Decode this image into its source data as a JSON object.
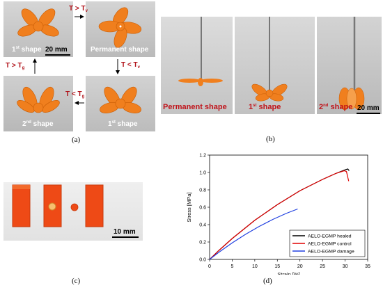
{
  "panel_a": {
    "label": "(a)",
    "captions": {
      "top_left_base": "1",
      "top_left_sup": "st",
      "top_left_rest": " shape",
      "top_right": "Permanent shape",
      "bottom_left_base": "2",
      "bottom_left_sup": "nd",
      "bottom_left_rest": " shape",
      "bottom_right_base": "1",
      "bottom_right_sup": "st",
      "bottom_right_rest": " shape"
    },
    "scale": "20 mm",
    "conditions": {
      "right": {
        "base": "T > T",
        "sub": "v"
      },
      "down": {
        "base": "T < T",
        "sub": "v"
      },
      "left": {
        "base": "T < T",
        "sub": "g"
      },
      "up": {
        "base": "T > T",
        "sub": "g"
      }
    }
  },
  "panel_b": {
    "label": "(b)",
    "captions": {
      "left": "Permanent shape",
      "middle_base": "1",
      "middle_sup": "st",
      "middle_rest": " shape",
      "right_base": "2",
      "right_sup": "nd",
      "right_rest": " shape"
    },
    "scale": "20 mm"
  },
  "panel_c": {
    "label": "(c)",
    "scale": "10 mm"
  },
  "panel_d": {
    "label": "(d)"
  },
  "colors": {
    "photo_gray": "#c9c9c9",
    "orange": "#f07f1e",
    "red_text": "#c0141b",
    "healed": "#000000",
    "control": "#e00000",
    "damage": "#1f3fe0"
  },
  "chart_data": {
    "type": "line",
    "xlabel": "Strain [%]",
    "ylabel": "Stress [MPa]",
    "xlim": [
      0,
      35
    ],
    "ylim": [
      0,
      1.2
    ],
    "xticks": [
      "0",
      "5",
      "10",
      "15",
      "20",
      "25",
      "30",
      "35"
    ],
    "yticks": [
      "0.0",
      "0.2",
      "0.4",
      "0.6",
      "0.8",
      "1.0",
      "1.2"
    ],
    "legend_position": "bottom-right",
    "series": [
      {
        "name": "AELO-EGMP healed",
        "color": "#000000",
        "x": [
          0,
          2,
          5,
          10,
          15,
          20,
          25,
          28,
          30,
          30.6,
          30.9
        ],
        "y": [
          0,
          0.1,
          0.24,
          0.45,
          0.63,
          0.79,
          0.92,
          0.99,
          1.03,
          1.04,
          1.02
        ]
      },
      {
        "name": "AELO-EGMP control",
        "color": "#e00000",
        "x": [
          0,
          2,
          5,
          10,
          15,
          20,
          25,
          28,
          29.8,
          30.3,
          30.8
        ],
        "y": [
          0,
          0.1,
          0.24,
          0.45,
          0.63,
          0.79,
          0.92,
          0.99,
          1.02,
          1.01,
          0.9
        ]
      },
      {
        "name": "AELO-EGMP damage",
        "color": "#1f3fe0",
        "x": [
          0,
          2,
          5,
          8,
          11,
          14,
          17,
          19.5
        ],
        "y": [
          0,
          0.08,
          0.19,
          0.29,
          0.38,
          0.46,
          0.53,
          0.58
        ]
      }
    ]
  }
}
